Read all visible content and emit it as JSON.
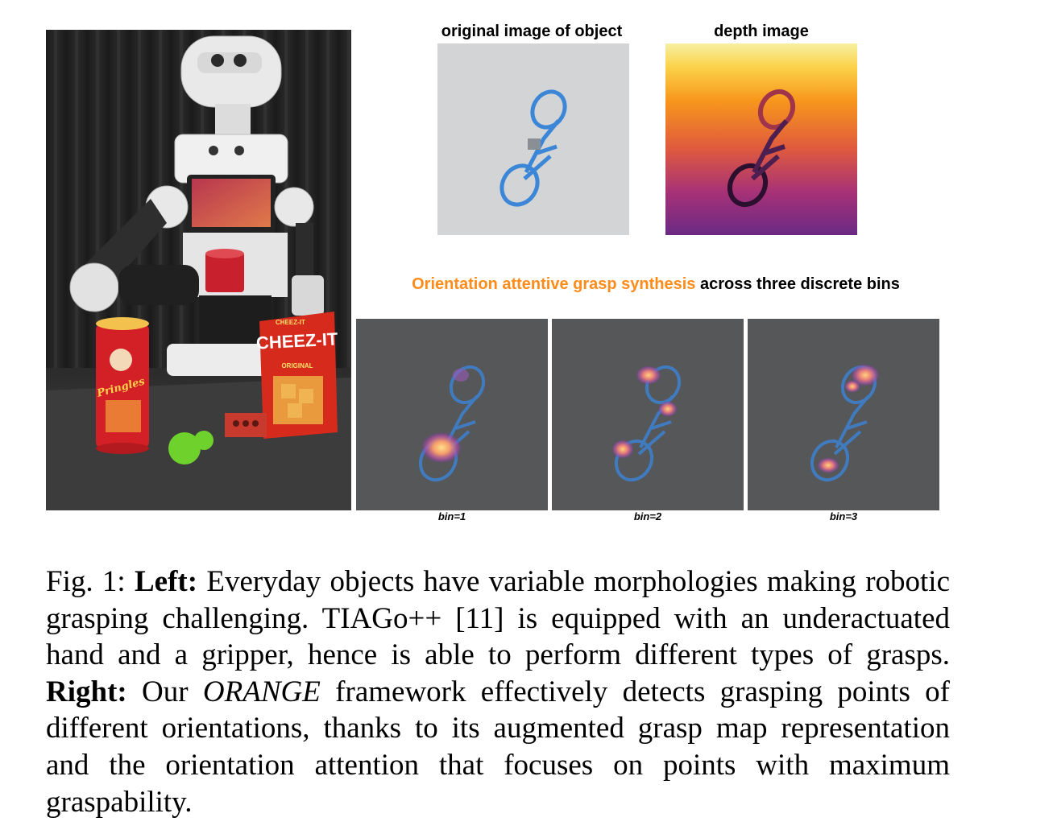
{
  "figure": {
    "top_labels": {
      "original": "original image of object",
      "depth": "depth image"
    },
    "right_heading": {
      "highlight": "Orientation attentive grasp synthesis",
      "rest": " across three discrete bins",
      "highlight_color": "#ff8c1a"
    },
    "bins": [
      "bin=1",
      "bin=2",
      "bin=3"
    ],
    "photo": {
      "cheezit_brand": "CHEEZ-IT",
      "cheezit_variant": "ORIGINAL",
      "cheezit_small_brand": "CHEEZ-IT",
      "pringles_brand": "Pringles"
    }
  },
  "caption": {
    "fig_label": "Fig. 1: ",
    "left_label": "Left:",
    "left_text": " Everyday objects have variable morphologies making robotic grasping challenging. TIAGo++ [11] is equipped with an underactuated hand and a gripper, hence is able to perform different types of grasps. ",
    "right_label": "Right:",
    "right_pre": " Our ",
    "framework_name": "ORANGE",
    "right_text": " framework effectively detects grasping points of different orientations, thanks to its augmented grasp map representation and the orientation attention that focuses on points with maximum graspability."
  }
}
